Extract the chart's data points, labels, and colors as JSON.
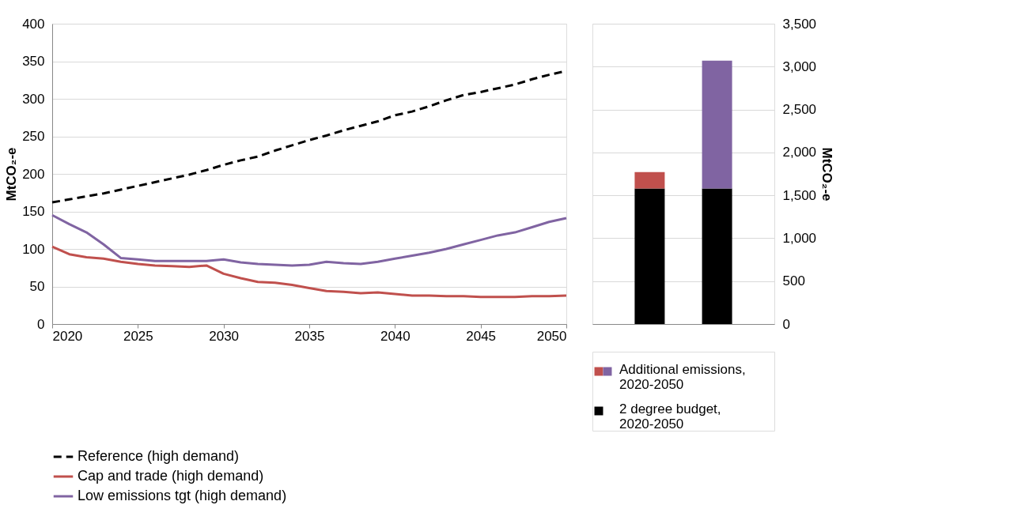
{
  "chart_data": [
    {
      "type": "line",
      "x": [
        2020,
        2021,
        2022,
        2023,
        2024,
        2025,
        2026,
        2027,
        2028,
        2029,
        2030,
        2031,
        2032,
        2033,
        2034,
        2035,
        2036,
        2037,
        2038,
        2039,
        2040,
        2041,
        2042,
        2043,
        2044,
        2045,
        2046,
        2047,
        2048,
        2049,
        2050
      ],
      "series": [
        {
          "name": "Reference (high demand)",
          "color": "#000000",
          "line_style": "dashed",
          "values": [
            162,
            166,
            170,
            174,
            179,
            184,
            189,
            194,
            199,
            205,
            212,
            218,
            223,
            231,
            238,
            245,
            251,
            258,
            264,
            270,
            278,
            283,
            290,
            298,
            305,
            309,
            314,
            319,
            326,
            332,
            337
          ]
        },
        {
          "name": "Cap and trade (high demand)",
          "color": "#c0504d",
          "line_style": "solid",
          "values": [
            103,
            93,
            89,
            87,
            83,
            80,
            78,
            77,
            76,
            78,
            67,
            61,
            56,
            55,
            52,
            48,
            44,
            43,
            41,
            42,
            40,
            38,
            38,
            37,
            37,
            36,
            36,
            36,
            37,
            37,
            38
          ]
        },
        {
          "name": "Low emissions tgt (high demand)",
          "color": "#8064a2",
          "line_style": "solid",
          "values": [
            145,
            133,
            122,
            106,
            88,
            86,
            84,
            84,
            84,
            84,
            86,
            82,
            80,
            79,
            78,
            79,
            83,
            81,
            80,
            83,
            87,
            91,
            95,
            100,
            106,
            112,
            118,
            122,
            129,
            136,
            141
          ]
        }
      ],
      "ylabel": "MtCO₂-e",
      "xlim": [
        2020,
        2050
      ],
      "xticks": [
        2020,
        2025,
        2030,
        2035,
        2040,
        2045,
        2050
      ],
      "ylim": [
        0,
        400
      ],
      "yticks": [
        0,
        50,
        100,
        150,
        200,
        250,
        300,
        350,
        400
      ],
      "grid": "y",
      "legend": "bottom"
    },
    {
      "type": "bar",
      "stacked": true,
      "categories": [
        null,
        null
      ],
      "series": [
        {
          "name": "2 degree budget, 2020-2050",
          "color": "#000000",
          "values": [
            1580,
            1580
          ]
        },
        {
          "name": "Additional emissions, 2020-2050",
          "colors": [
            "#c0504d",
            "#8064a2"
          ],
          "values": [
            190,
            1490
          ]
        }
      ],
      "ylabel": "MtCO₂-e",
      "ylim": [
        0,
        3500
      ],
      "yticks": [
        0,
        500,
        {
          "value": 1000,
          "label": "1,000"
        },
        {
          "value": 1500,
          "label": "1,500"
        },
        {
          "value": 2000,
          "label": "2,000"
        },
        {
          "value": 2500,
          "label": "2,500"
        },
        {
          "value": 3000,
          "label": "3,000"
        },
        {
          "value": 3500,
          "label": "3,500"
        }
      ],
      "grid": "y",
      "legend": "bottom"
    }
  ]
}
